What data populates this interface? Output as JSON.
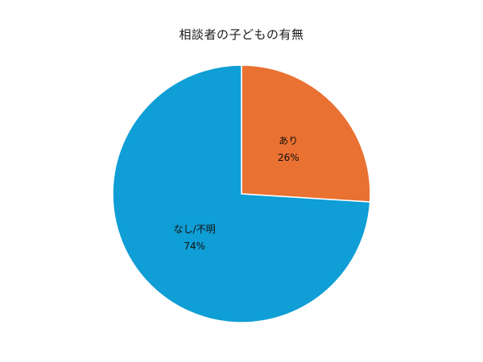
{
  "chart_data": {
    "type": "pie",
    "title": "相談者の子どもの有無",
    "slices": [
      {
        "label": "あり",
        "value": 26,
        "value_label": "26%",
        "color": "#E97132"
      },
      {
        "label": "なし/不明",
        "value": 74,
        "value_label": "74%",
        "color": "#0F9ED5"
      }
    ],
    "start_angle_deg": 0,
    "direction": "clockwise",
    "slice_border_color": "#ffffff",
    "legend": "none"
  }
}
